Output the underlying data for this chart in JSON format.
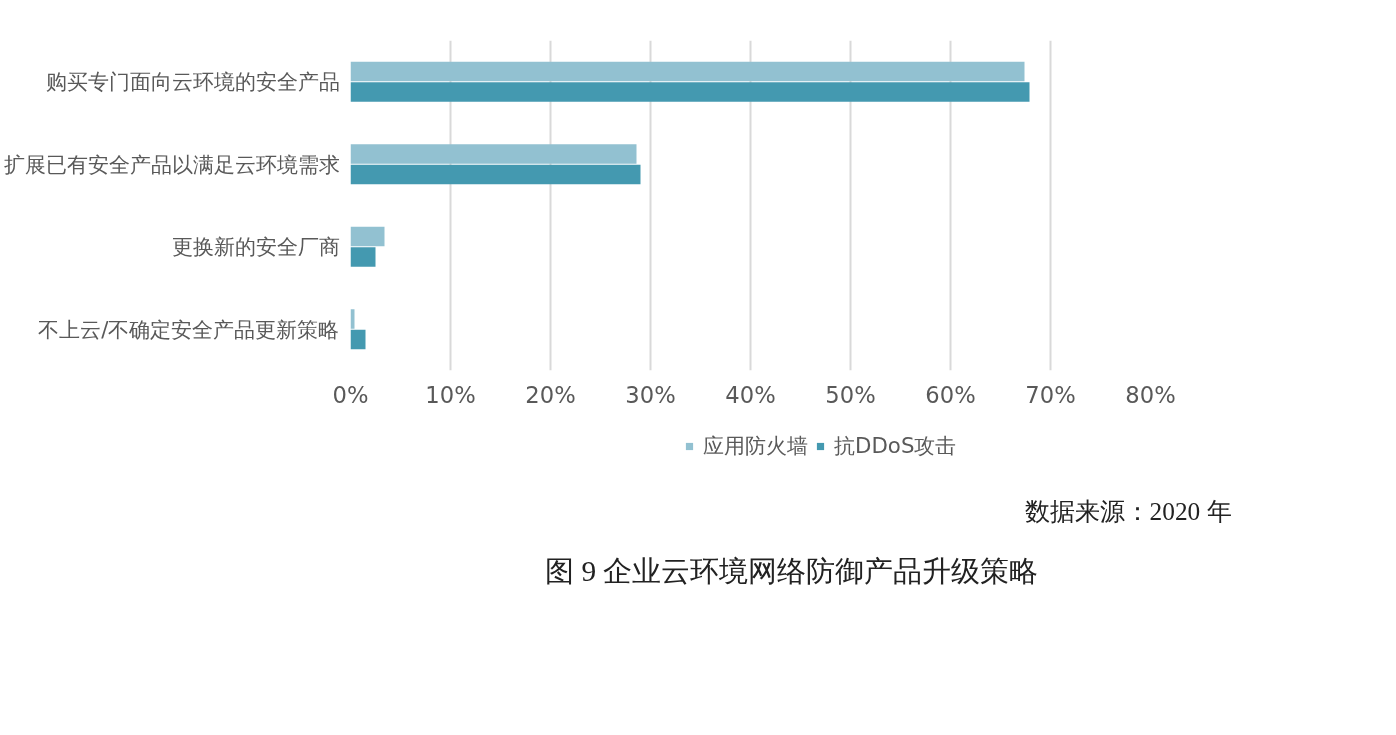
{
  "chart_data": {
    "type": "bar",
    "orientation": "horizontal",
    "title": "图 9  企业云环境网络防御产品升级策略",
    "annotations": [
      "数据来源：2020 年"
    ],
    "categories": [
      "购买专门面向云环境的安全产品",
      "扩展已有安全产品以满足云环境需求",
      "更换新的安全厂商",
      "不上云/不确定安全产品更新策略"
    ],
    "series": [
      {
        "name": "应用防火墙",
        "color": "#92c1d1",
        "values": [
          67.4,
          28.6,
          3.4,
          0.4
        ]
      },
      {
        "name": "抗DDoS攻击",
        "color": "#4499b0",
        "values": [
          67.9,
          29.0,
          2.5,
          1.5
        ]
      }
    ],
    "xlim": [
      0,
      80
    ],
    "xticks": [
      {
        "value": 0,
        "label": "0%"
      },
      {
        "value": 10,
        "label": "10%"
      },
      {
        "value": 20,
        "label": "20%"
      },
      {
        "value": 30,
        "label": "30%"
      },
      {
        "value": 40,
        "label": "40%"
      },
      {
        "value": 50,
        "label": "50%"
      },
      {
        "value": 60,
        "label": "60%"
      },
      {
        "value": 70,
        "label": "70%"
      },
      {
        "value": 80,
        "label": "80%"
      }
    ],
    "grid": "x",
    "legend": "bottom"
  }
}
